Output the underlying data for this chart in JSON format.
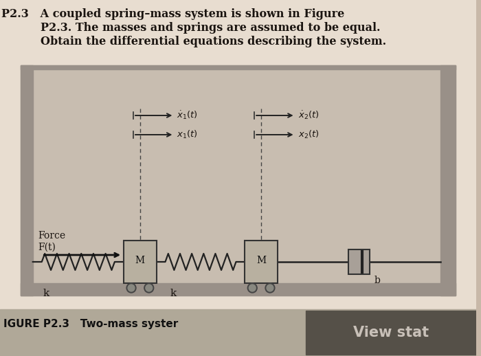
{
  "bg_color": "#c8b8a8",
  "paper_color": "#e8ddd0",
  "title_line1": "P2.3   A coupled spring–mass system is shown in Figure",
  "title_line2": "P2.3. The masses and springs are assumed to be equal.",
  "title_line3": "Obtain the differential equations describing the system.",
  "caption": "IGURE P2.3   Two-mass syster",
  "view_stat_text": "View stat",
  "wall_color": "#999088",
  "interior_color": "#c8bdb0",
  "mass_color": "#b8b0a0",
  "spring_color": "#222222",
  "text_color": "#1a1410",
  "caption_bg": "#b0a898",
  "viewbtn_color": "#555048",
  "viewbtn_text": "#c8c0b8"
}
